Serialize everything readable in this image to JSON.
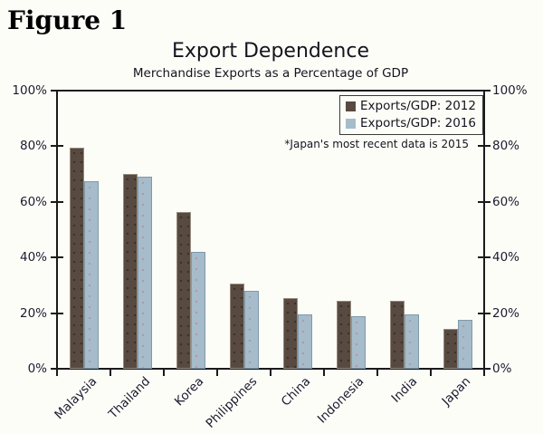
{
  "figure_label": "Figure 1",
  "chart": {
    "title": "Export Dependence",
    "subtitle": "Merchandise Exports as a Percentage of GDP",
    "note": "*Japan's most recent data is 2015",
    "legend": [
      {
        "label": "Exports/GDP: 2012",
        "color": "#584a40"
      },
      {
        "label": "Exports/GDP: 2016",
        "color": "#a6bccb"
      }
    ]
  },
  "chart_data": {
    "type": "bar",
    "title": "Export Dependence",
    "subtitle": "Merchandise Exports as a Percentage of GDP",
    "categories": [
      "Malaysia",
      "Thailand",
      "Korea",
      "Philippines",
      "China",
      "Indonesia",
      "India",
      "Japan"
    ],
    "series": [
      {
        "name": "Exports/GDP: 2012",
        "color": "#584a40",
        "values": [
          79.5,
          70,
          56.5,
          30.5,
          25.5,
          24.5,
          24.5,
          14.5
        ]
      },
      {
        "name": "Exports/GDP: 2016",
        "color": "#a6bccb",
        "values": [
          67.5,
          69,
          42,
          28,
          19.5,
          19,
          19.5,
          17.5
        ]
      }
    ],
    "xlabel": "",
    "ylabel": "",
    "ylim": [
      0,
      100
    ],
    "ytick_labels": [
      "0%",
      "20%",
      "40%",
      "60%",
      "80%",
      "100%"
    ],
    "y_axis_sides": "both",
    "grid": false,
    "legend_position": "top-right",
    "annotation": "*Japan's most recent data is 2015"
  }
}
